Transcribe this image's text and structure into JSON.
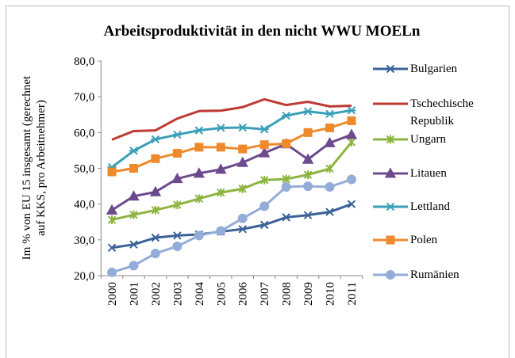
{
  "chart_data": {
    "type": "line",
    "title": "Arbeitsproduktivität in den nicht WWU MOELn",
    "y_label": [
      "Im % von EU 15 insgesamt (gerechnet",
      "auf KKS, pro Arbeitnehmer)"
    ],
    "categories": [
      "2000",
      "2001",
      "2002",
      "2003",
      "2004",
      "2005",
      "2006",
      "2007",
      "2008",
      "2009",
      "2010",
      "2011"
    ],
    "ylim": [
      20,
      80
    ],
    "yticks": [
      {
        "value": 20,
        "label": "20,0"
      },
      {
        "value": 30,
        "label": "30,0"
      },
      {
        "value": 40,
        "label": "40,0"
      },
      {
        "value": 50,
        "label": "50,0"
      },
      {
        "value": 60,
        "label": "60,0"
      },
      {
        "value": 70,
        "label": "70,0"
      },
      {
        "value": 80,
        "label": "80,0"
      }
    ],
    "grid": false,
    "series": [
      {
        "name": "Bulgarien",
        "color": "#3a6296",
        "marker": "x",
        "values": [
          27.8,
          28.7,
          30.6,
          31.2,
          31.5,
          32.3,
          33.0,
          34.2,
          36.3,
          36.9,
          37.8,
          40.0
        ]
      },
      {
        "name": "Tschechische Republik",
        "color": "#be3a34",
        "marker": "none",
        "values": [
          58.0,
          60.4,
          60.6,
          63.9,
          66.0,
          66.1,
          67.1,
          69.3,
          67.7,
          68.6,
          67.3,
          67.5
        ]
      },
      {
        "name": "Ungarn",
        "color": "#8db440",
        "marker": "asterisk",
        "values": [
          35.6,
          37.0,
          38.3,
          39.8,
          41.5,
          43.2,
          44.3,
          46.7,
          47.0,
          48.2,
          49.9,
          57.3
        ]
      },
      {
        "name": "Litauen",
        "color": "#6c4a8e",
        "marker": "triangle",
        "values": [
          38.3,
          42.2,
          43.4,
          47.1,
          48.6,
          49.7,
          51.6,
          54.3,
          56.8,
          52.5,
          57.1,
          59.4
        ]
      },
      {
        "name": "Lettland",
        "color": "#3aa0b8",
        "marker": "star",
        "values": [
          50.3,
          54.9,
          58.1,
          59.4,
          60.6,
          61.3,
          61.4,
          60.9,
          64.7,
          65.9,
          65.2,
          66.2
        ]
      },
      {
        "name": "Polen",
        "color": "#ee8a2c",
        "marker": "square",
        "values": [
          49.0,
          50.0,
          52.7,
          54.2,
          55.9,
          55.9,
          55.4,
          56.6,
          56.9,
          60.0,
          61.3,
          63.3
        ]
      },
      {
        "name": "Rumänien",
        "color": "#93acd8",
        "marker": "circle",
        "values": [
          20.9,
          22.8,
          26.2,
          28.2,
          31.2,
          32.5,
          36.0,
          39.4,
          44.8,
          45.0,
          44.8,
          46.9
        ]
      }
    ]
  }
}
